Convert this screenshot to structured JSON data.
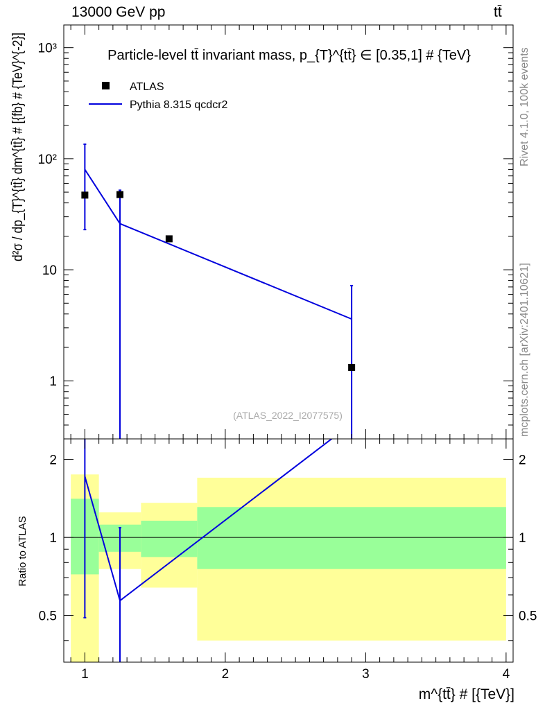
{
  "header": {
    "left": "13000 GeV pp",
    "right": "tt̄"
  },
  "side_text": {
    "rivet": "Rivet 4.1.0,  100k events",
    "mcplots": "mcplots.cern.ch [arXiv:2401.10621]"
  },
  "chart_data": {
    "type": "scatter",
    "title": "Particle-level tt̄ invariant mass, p_{T}^{tt̄} ∈ [0.35,1] # {TeV}",
    "watermark": "(ATLAS_2022_I2077575)",
    "xlabel": "m^{tt̄} # [{TeV}]",
    "ylabel": "d²σ / dp_{T}^{tt̄} dm^{tt̄} # [{fb} # {TeV}^{-2}]",
    "ratio_ylabel": "Ratio to ATLAS",
    "xlim": [
      0.85,
      4.05
    ],
    "ylim": [
      0.3,
      1600
    ],
    "yscale": "log",
    "ratio_ylim": [
      0.33,
      2.4
    ],
    "x_ticks": [
      1,
      2,
      3,
      4
    ],
    "x_tick_labels": [
      "1",
      "2",
      "3",
      "4"
    ],
    "y_ticks": [
      1,
      10,
      100,
      1000
    ],
    "y_tick_labels": [
      "1",
      "10",
      "10²",
      "10³"
    ],
    "ratio_ticks": [
      0.5,
      1,
      2
    ],
    "ratio_tick_labels": [
      "0.5",
      "1",
      "2"
    ],
    "legend_position": "top-left",
    "series": [
      {
        "name": "ATLAS",
        "kind": "data",
        "color": "#000000",
        "points": [
          {
            "x": 1.0,
            "y": 47,
            "xlo": 0.9,
            "xhi": 1.1
          },
          {
            "x": 1.25,
            "y": 47.5,
            "xlo": 1.1,
            "xhi": 1.4
          },
          {
            "x": 1.6,
            "y": 19,
            "xlo": 1.4,
            "xhi": 1.8
          },
          {
            "x": 2.9,
            "y": 1.32,
            "xlo": 1.8,
            "xhi": 4.0
          }
        ]
      },
      {
        "name": "Pythia 8.315 qcdcr2",
        "kind": "mc",
        "color": "#0000dd",
        "points": [
          {
            "x": 1.0,
            "y": 80,
            "ylo": 23,
            "yhi": 135
          },
          {
            "x": 1.25,
            "y": 26,
            "ylo": 0.01,
            "yhi": 52
          },
          {
            "x": 2.9,
            "y": 3.6,
            "ylo": 0.01,
            "yhi": 7.2
          }
        ]
      }
    ],
    "ratio": {
      "bands": [
        {
          "xlo": 0.9,
          "xhi": 1.1,
          "green": [
            0.72,
            1.41
          ],
          "yellow": [
            0.3,
            1.75
          ]
        },
        {
          "xlo": 1.1,
          "xhi": 1.4,
          "green": [
            0.88,
            1.12
          ],
          "yellow": [
            0.755,
            1.25
          ]
        },
        {
          "xlo": 1.4,
          "xhi": 1.8,
          "green": [
            0.84,
            1.16
          ],
          "yellow": [
            0.64,
            1.36
          ]
        },
        {
          "xlo": 1.8,
          "xhi": 4.0,
          "green": [
            0.755,
            1.31
          ],
          "yellow": [
            0.4,
            1.7
          ]
        }
      ],
      "mc_points": [
        {
          "x": 1.0,
          "y": 1.72,
          "ylo": 0.49,
          "yhi": 2.9
        },
        {
          "x": 1.25,
          "y": 0.57,
          "ylo": 0.01,
          "yhi": 1.09
        },
        {
          "x": 2.9,
          "y": 2.75
        }
      ]
    }
  }
}
